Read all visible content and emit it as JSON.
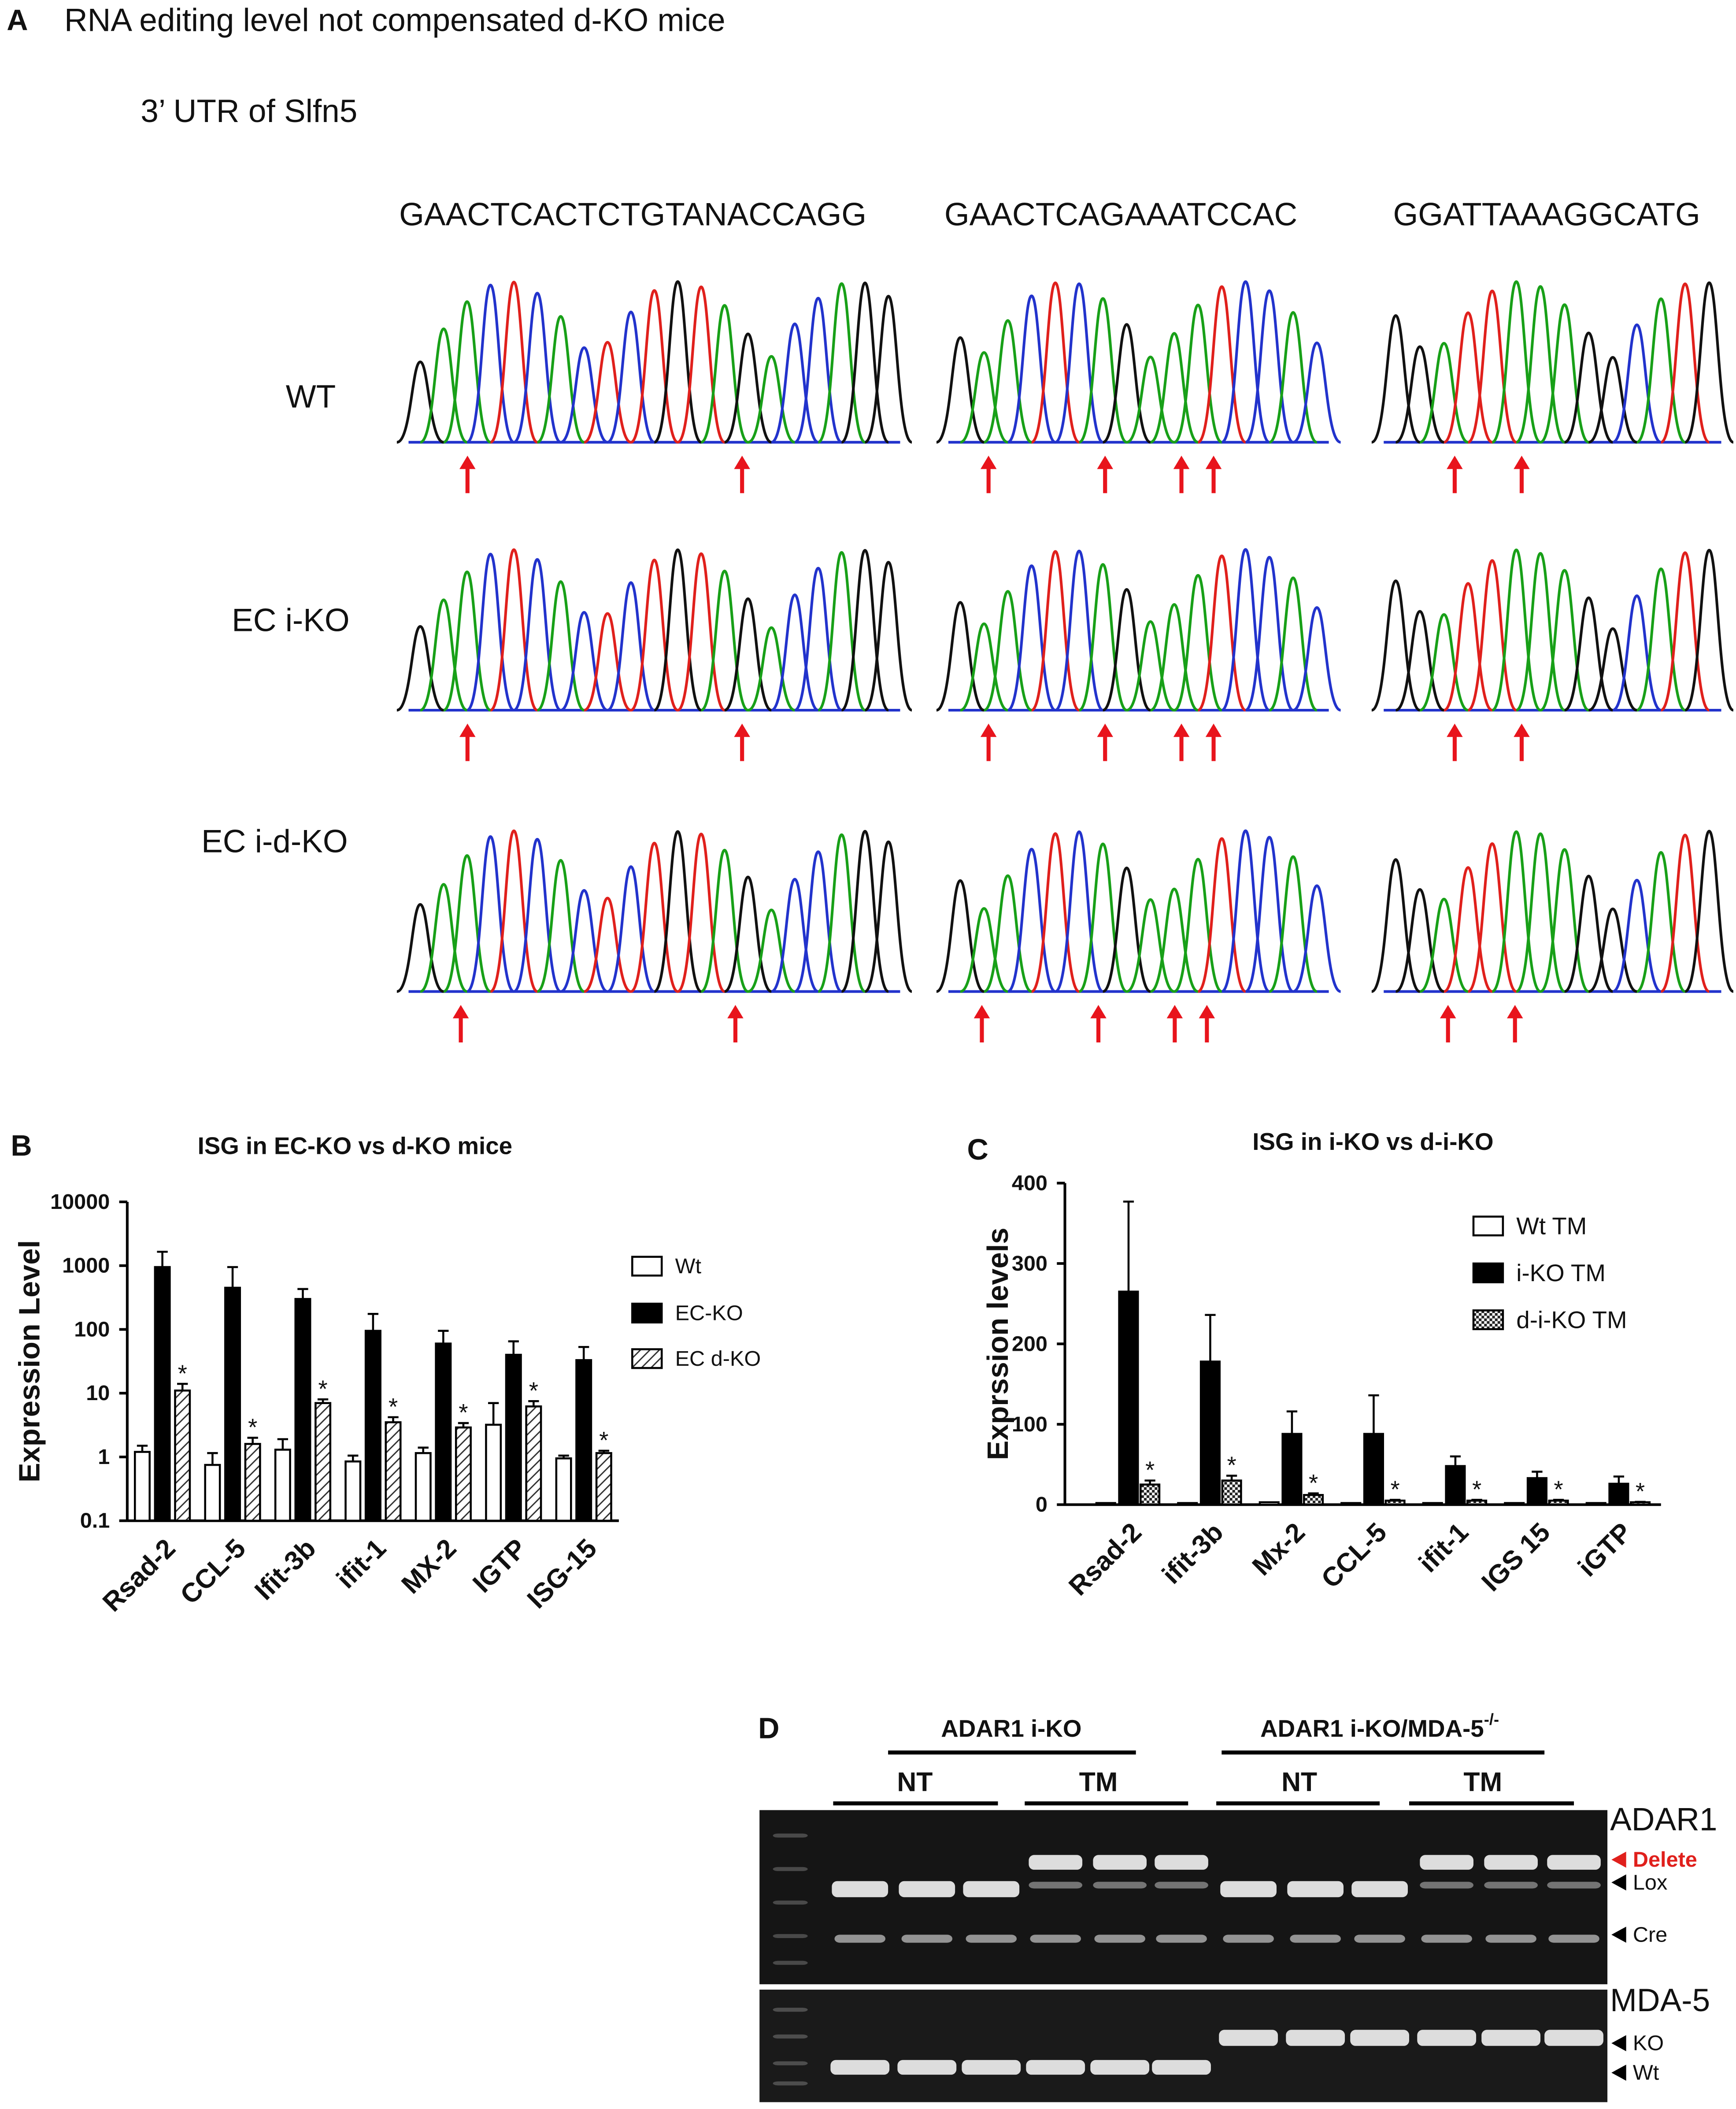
{
  "panel_a": {
    "label": "A",
    "title": "RNA editing level not compensated d-KO mice",
    "subtitle": "3’ UTR of Slfn5",
    "sequences": [
      "GAACTCACTCTGTANACCAGG",
      "GAACTCAGAAATCCAC",
      "GGATTAAAGGCATG"
    ],
    "rows": [
      "WT",
      "EC i-KO",
      "EC i-d-KO"
    ]
  },
  "chart_data": [
    {
      "type": "bar",
      "panel_label": "B",
      "title": "ISG in EC-KO vs d-KO mice",
      "y_label": "Expression Level",
      "log_scale": true,
      "grid": false,
      "categories": [
        "Rsad-2",
        "CCL-5",
        "Ifit-3b",
        "ifit-1",
        "MX-2",
        "IGTP",
        "ISG-15"
      ],
      "ylim": [
        0.1,
        10000
      ],
      "yticks": [
        0.1,
        1,
        10,
        100,
        1000,
        10000
      ],
      "series": [
        {
          "name": "Wt",
          "fill": "white",
          "values": [
            1.2,
            0.75,
            1.3,
            0.85,
            1.15,
            3.2,
            0.95
          ],
          "errors": [
            0.3,
            0.4,
            0.6,
            0.2,
            0.25,
            3.8,
            0.1
          ]
        },
        {
          "name": "EC-KO",
          "fill": "black",
          "values": [
            950,
            450,
            300,
            95,
            60,
            40,
            33
          ],
          "errors": [
            700,
            500,
            130,
            80,
            35,
            25,
            20
          ]
        },
        {
          "name": "EC d-KO",
          "fill": "hatch",
          "values": [
            11,
            1.6,
            7,
            3.5,
            2.9,
            6.2,
            1.15
          ],
          "errors": [
            3,
            0.4,
            1,
            0.7,
            0.5,
            1.3,
            0.1
          ],
          "significance": [
            "*",
            "*",
            "*",
            "*",
            "*",
            "*",
            "*"
          ]
        }
      ]
    },
    {
      "type": "bar",
      "panel_label": "C",
      "title": "ISG in i-KO vs d-i-KO",
      "y_label": "Exprssion levels",
      "log_scale": false,
      "grid": false,
      "categories": [
        "Rsad-2",
        "ifit-3b",
        "Mx-2",
        "CCL-5",
        "ifit-1",
        "IGS 15",
        "iGTP"
      ],
      "ylim": [
        0,
        400
      ],
      "yticks": [
        0,
        100,
        200,
        300,
        400
      ],
      "series": [
        {
          "name": "Wt TM",
          "fill": "white",
          "values": [
            2,
            2,
            3,
            2,
            2,
            2,
            2
          ]
        },
        {
          "name": "i-KO TM",
          "fill": "black",
          "values": [
            265,
            178,
            88,
            88,
            48,
            33,
            26
          ],
          "errors": [
            112,
            58,
            28,
            48,
            12,
            8,
            9
          ]
        },
        {
          "name": "d-i-KO TM",
          "fill": "checker",
          "values": [
            25,
            30,
            12,
            5,
            5,
            5,
            3
          ],
          "errors": [
            5,
            6,
            2,
            1,
            1,
            1,
            0.5
          ],
          "significance": [
            "*",
            "*",
            "*",
            "*",
            "*",
            "*",
            "*"
          ]
        }
      ]
    }
  ],
  "panel_d": {
    "label": "D",
    "group_1": "ADAR1 i-KO",
    "group_2": "ADAR1 i-KO/MDA-5",
    "group_2_superscript": "-/-",
    "treatments": [
      "NT",
      "TM",
      "NT",
      "TM"
    ],
    "gel_1": "ADAR1",
    "gel_2": "MDA-5",
    "bands_1": [
      "Delete",
      "Lox",
      "Cre"
    ],
    "bands_2": [
      "KO",
      "Wt"
    ]
  }
}
